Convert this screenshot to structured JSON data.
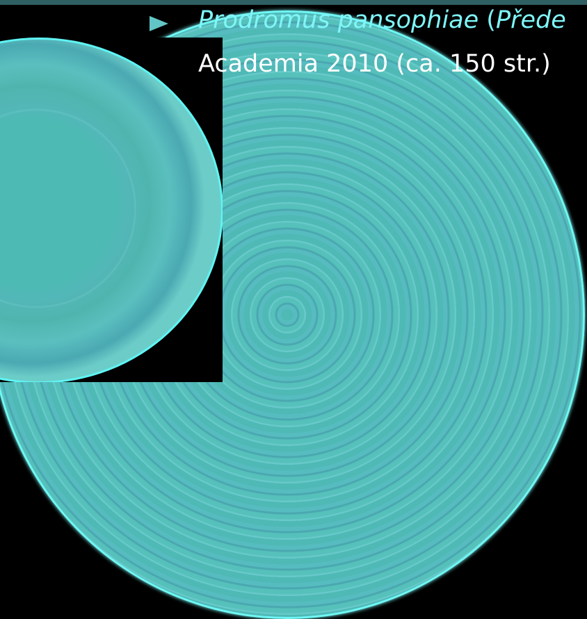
{
  "slide": {
    "bullet_title_italic": "Prodromus pansophiae",
    "bullet_title_paren_open": " (",
    "bullet_title_subtitle_italic": "Přede",
    "citation": "Academia 2010 (ca. 150 str.)"
  },
  "colors": {
    "background": "#000000",
    "accent": "#63c6c6",
    "title_text": "#7ff6f8",
    "body_text": "#ffffff"
  }
}
